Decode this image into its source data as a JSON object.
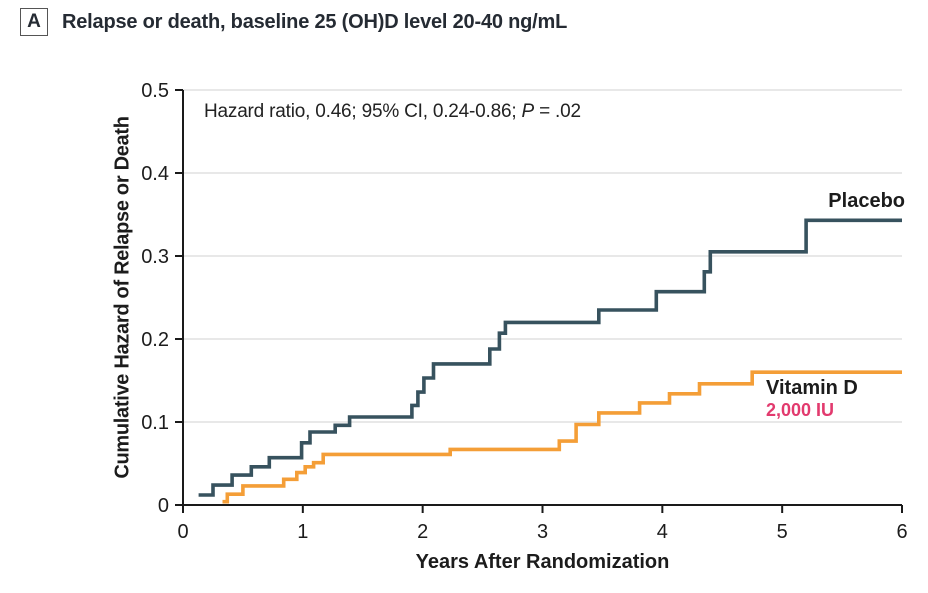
{
  "panel": {
    "letter": "A",
    "title": "Relapse or death, baseline 25 (OH)D level 20-40 ng/mL"
  },
  "annotation": {
    "prefix": "Hazard ratio, 0.46; 95% CI, 0.24-0.86; ",
    "p_symbol": "P",
    "p_rest": " = .02"
  },
  "axis_titles": {
    "x": "Years After Randomization",
    "y": "Cumulative Hazard of Relapse or Death"
  },
  "series_labels": {
    "placebo": "Placebo",
    "vitamin_d": "Vitamin D",
    "dose": "2,000 IU"
  },
  "colors": {
    "placebo_line": "#37525E",
    "vitamin_d_line": "#F49E37",
    "dose_text": "#E23A6E",
    "grid": "#E0E0E0",
    "axis": "#1A1A1A",
    "tick_text": "#1C1C1C"
  },
  "chart_data": {
    "type": "line",
    "subtype": "step-function-cumulative-hazard",
    "title": "Relapse or death, baseline 25 (OH)D level 20-40 ng/mL",
    "xlabel": "Years After Randomization",
    "ylabel": "Cumulative Hazard of Relapse or Death",
    "xlim": [
      0,
      6
    ],
    "ylim": [
      0,
      0.5
    ],
    "xticks": [
      0,
      1,
      2,
      3,
      4,
      5,
      6
    ],
    "yticks": [
      0,
      0.1,
      0.2,
      0.3,
      0.4,
      0.5
    ],
    "ytick_labels": [
      "0",
      "0.1",
      "0.2",
      "0.3",
      "0.4",
      "0.5"
    ],
    "xtick_labels": [
      "0",
      "1",
      "2",
      "3",
      "4",
      "5",
      "6"
    ],
    "grid": "horizontal light-gray lines at y = 0.1 to 0.5",
    "legend_position": "inline labels at right ends of curves",
    "statistics": {
      "hazard_ratio": 0.46,
      "ci_95": "0.24-0.86",
      "p_value": ".02"
    },
    "series": [
      {
        "name": "Placebo",
        "color": "#37525E",
        "start": [
          0.13,
          0.012
        ],
        "steps": [
          [
            0.25,
            0.024
          ],
          [
            0.41,
            0.036
          ],
          [
            0.57,
            0.046
          ],
          [
            0.72,
            0.057
          ],
          [
            0.99,
            0.075
          ],
          [
            1.06,
            0.088
          ],
          [
            1.27,
            0.096
          ],
          [
            1.39,
            0.106
          ],
          [
            1.91,
            0.12
          ],
          [
            1.96,
            0.136
          ],
          [
            2.01,
            0.153
          ],
          [
            2.09,
            0.17
          ],
          [
            2.56,
            0.188
          ],
          [
            2.64,
            0.207
          ],
          [
            2.69,
            0.22
          ],
          [
            3.47,
            0.235
          ],
          [
            3.95,
            0.257
          ],
          [
            4.35,
            0.281
          ],
          [
            4.4,
            0.305
          ],
          [
            5.2,
            0.343
          ]
        ],
        "end_x": 6,
        "final_value": 0.343
      },
      {
        "name": "Vitamin D 2,000 IU",
        "color": "#F49E37",
        "start": [
          0.33,
          0.004
        ],
        "steps": [
          [
            0.37,
            0.013
          ],
          [
            0.5,
            0.023
          ],
          [
            0.84,
            0.031
          ],
          [
            0.95,
            0.039
          ],
          [
            1.02,
            0.046
          ],
          [
            1.09,
            0.051
          ],
          [
            1.17,
            0.061
          ],
          [
            2.23,
            0.067
          ],
          [
            3.14,
            0.077
          ],
          [
            3.28,
            0.097
          ],
          [
            3.47,
            0.111
          ],
          [
            3.81,
            0.123
          ],
          [
            4.06,
            0.134
          ],
          [
            4.31,
            0.146
          ],
          [
            4.75,
            0.16
          ]
        ],
        "end_x": 6,
        "final_value": 0.16
      }
    ]
  }
}
